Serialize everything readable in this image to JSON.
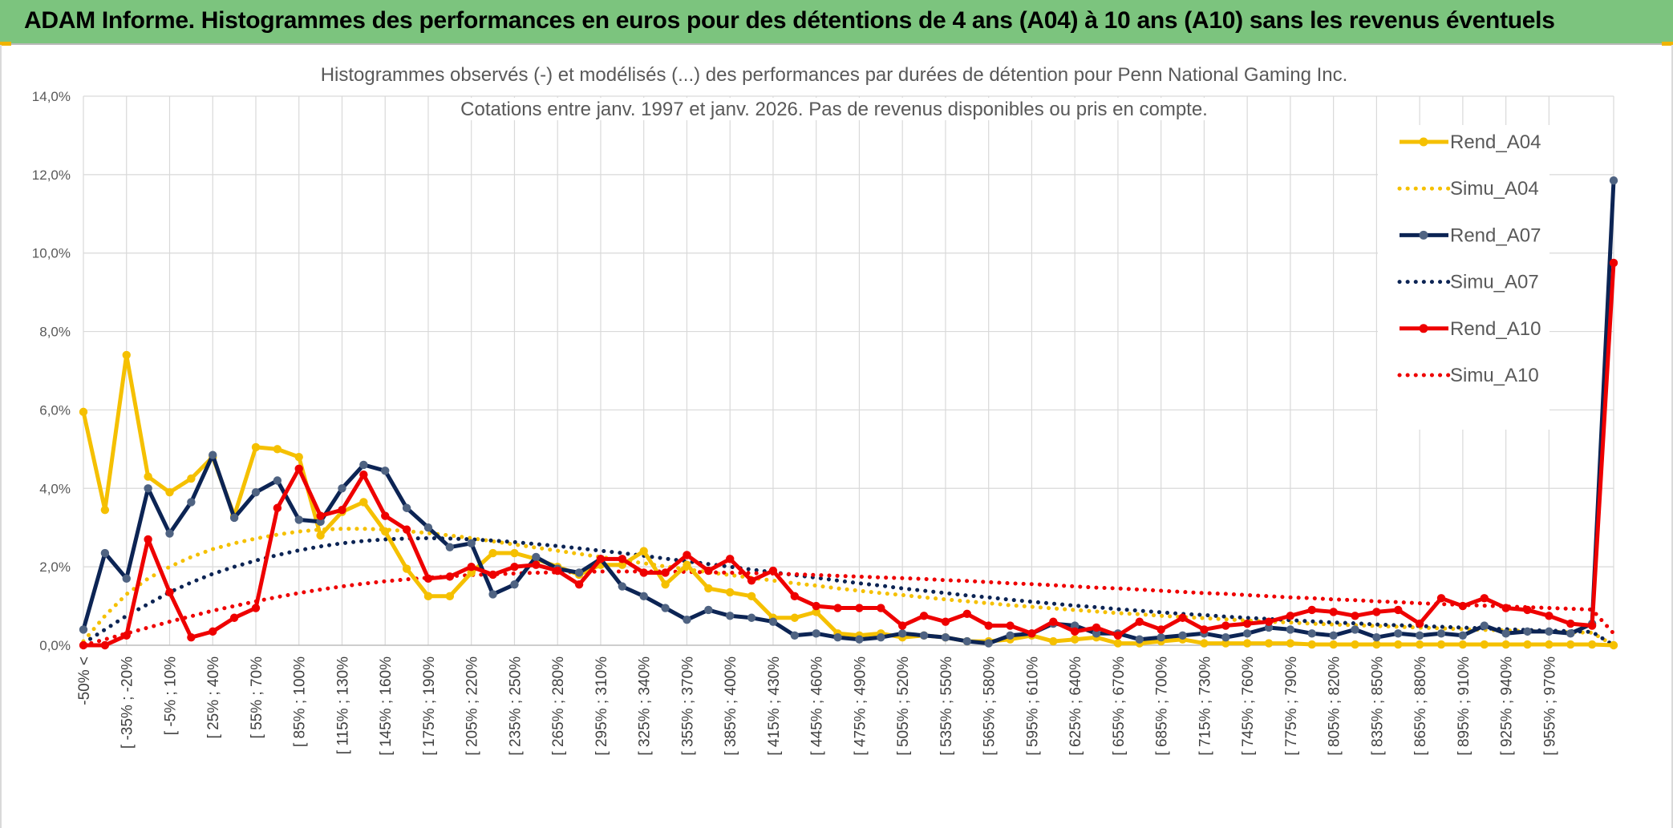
{
  "header": {
    "title": "ADAM Informe. Histogrammes des performances en euros pour des détentions de 4 ans (A04) à 10 ans (A10) sans les revenus éventuels"
  },
  "chart_data": {
    "type": "line",
    "title": "Histogrammes observés (-) et modélisés (...) des performances par durées de détention pour Penn National Gaming Inc.",
    "subtitle": "Cotations entre janv. 1997 et janv. 2026. Pas de revenus disponibles ou pris en compte.",
    "xlabel": "",
    "ylabel": "",
    "ylim": [
      0,
      14
    ],
    "yticks": [
      "0,0%",
      "2,0%",
      "4,0%",
      "6,0%",
      "8,0%",
      "10,0%",
      "12,0%",
      "14,0%"
    ],
    "grid": true,
    "legend_position": "right",
    "category_count": 72,
    "category_labels": [
      "-50% <",
      "[ -35% ; -20%",
      "[ -5% ; 10%",
      "[ 25% ; 40%",
      "[ 55% ; 70%",
      "[ 85% ; 100%",
      "[ 115% ; 130%",
      "[ 145% ; 160%",
      "[ 175% ; 190%",
      "[ 205% ; 220%",
      "[ 235% ; 250%",
      "[ 265% ; 280%",
      "[ 295% ; 310%",
      "[ 325% ; 340%",
      "[ 355% ; 370%",
      "[ 385% ; 400%",
      "[ 415% ; 430%",
      "[ 445% ; 460%",
      "[ 475% ; 490%",
      "[ 505% ; 520%",
      "[ 535% ; 550%",
      "[ 565% ; 580%",
      "[ 595% ; 610%",
      "[ 625% ; 640%",
      "[ 655% ; 670%",
      "[ 685% ; 700%",
      "[ 715% ; 730%",
      "[ 745% ; 760%",
      "[ 775% ; 790%",
      "[ 805% ; 820%",
      "[ 835% ; 850%",
      "[ 865% ; 880%",
      "[ 895% ; 910%",
      "[ 925% ; 940%",
      "[ 955% ; 970%"
    ],
    "series": [
      {
        "name": "Rend_A04",
        "color": "#f5c000",
        "style": "solid",
        "values": [
          5.95,
          3.45,
          7.4,
          4.3,
          3.9,
          4.25,
          4.8,
          3.3,
          5.05,
          5.0,
          4.8,
          2.8,
          3.4,
          3.65,
          2.9,
          1.95,
          1.25,
          1.25,
          1.85,
          2.35,
          2.35,
          2.2,
          2.0,
          1.8,
          2.05,
          2.05,
          2.4,
          1.55,
          2.05,
          1.45,
          1.35,
          1.25,
          0.7,
          0.7,
          0.85,
          0.3,
          0.25,
          0.3,
          0.2,
          0.25,
          0.2,
          0.1,
          0.1,
          0.15,
          0.25,
          0.1,
          0.15,
          0.2,
          0.05,
          0.05,
          0.1,
          0.15,
          0.05,
          0.05,
          0.05,
          0.05,
          0.05,
          0.02,
          0.02,
          0.02,
          0.02,
          0.02,
          0.02,
          0.02,
          0.02,
          0.02,
          0.02,
          0.02,
          0.02,
          0.02,
          0.02,
          0.0
        ]
      },
      {
        "name": "Simu_A04",
        "color": "#f5c000",
        "style": "dotted",
        "values": [
          0.1,
          0.75,
          1.3,
          1.7,
          2.0,
          2.25,
          2.45,
          2.6,
          2.72,
          2.82,
          2.9,
          2.95,
          2.97,
          2.97,
          2.95,
          2.91,
          2.86,
          2.8,
          2.73,
          2.65,
          2.57,
          2.49,
          2.41,
          2.33,
          2.25,
          2.17,
          2.09,
          2.01,
          1.94,
          1.86,
          1.79,
          1.72,
          1.65,
          1.58,
          1.52,
          1.45,
          1.39,
          1.33,
          1.28,
          1.22,
          1.17,
          1.12,
          1.07,
          1.02,
          0.98,
          0.94,
          0.9,
          0.86,
          0.82,
          0.79,
          0.75,
          0.72,
          0.69,
          0.66,
          0.63,
          0.6,
          0.58,
          0.55,
          0.53,
          0.51,
          0.49,
          0.47,
          0.45,
          0.43,
          0.41,
          0.39,
          0.38,
          0.36,
          0.35,
          0.33,
          0.32,
          0.0
        ]
      },
      {
        "name": "Rend_A07",
        "color": "#0c2454",
        "style": "solid",
        "values": [
          0.4,
          2.35,
          1.7,
          4.0,
          2.85,
          3.65,
          4.85,
          3.25,
          3.9,
          4.2,
          3.2,
          3.15,
          4.0,
          4.6,
          4.45,
          3.5,
          3.0,
          2.5,
          2.6,
          1.3,
          1.55,
          2.25,
          1.95,
          1.85,
          2.2,
          1.5,
          1.25,
          0.95,
          0.65,
          0.9,
          0.75,
          0.7,
          0.6,
          0.25,
          0.3,
          0.2,
          0.15,
          0.2,
          0.3,
          0.25,
          0.2,
          0.1,
          0.05,
          0.25,
          0.3,
          0.55,
          0.5,
          0.3,
          0.3,
          0.15,
          0.2,
          0.25,
          0.3,
          0.2,
          0.3,
          0.45,
          0.4,
          0.3,
          0.25,
          0.4,
          0.2,
          0.3,
          0.25,
          0.3,
          0.25,
          0.5,
          0.3,
          0.35,
          0.35,
          0.3,
          0.55,
          11.85
        ]
      },
      {
        "name": "Simu_A07",
        "color": "#0c2454",
        "style": "dotted",
        "values": [
          0.05,
          0.4,
          0.75,
          1.05,
          1.35,
          1.6,
          1.82,
          2.0,
          2.16,
          2.3,
          2.42,
          2.52,
          2.6,
          2.66,
          2.7,
          2.72,
          2.73,
          2.72,
          2.7,
          2.67,
          2.63,
          2.58,
          2.53,
          2.47,
          2.41,
          2.35,
          2.28,
          2.21,
          2.14,
          2.07,
          2.0,
          1.93,
          1.86,
          1.79,
          1.72,
          1.65,
          1.58,
          1.52,
          1.45,
          1.39,
          1.33,
          1.27,
          1.22,
          1.16,
          1.11,
          1.06,
          1.01,
          0.97,
          0.92,
          0.88,
          0.84,
          0.8,
          0.77,
          0.73,
          0.7,
          0.67,
          0.64,
          0.61,
          0.58,
          0.56,
          0.53,
          0.51,
          0.49,
          0.47,
          0.45,
          0.43,
          0.41,
          0.39,
          0.37,
          0.36,
          0.34,
          0.0
        ]
      },
      {
        "name": "Rend_A10",
        "color": "#ee0000",
        "style": "solid",
        "values": [
          0.0,
          0.0,
          0.25,
          2.7,
          1.35,
          0.2,
          0.35,
          0.7,
          0.95,
          3.5,
          4.5,
          3.3,
          3.45,
          4.35,
          3.3,
          2.95,
          1.7,
          1.75,
          2.0,
          1.8,
          2.0,
          2.05,
          1.9,
          1.55,
          2.2,
          2.2,
          1.85,
          1.85,
          2.3,
          1.9,
          2.2,
          1.65,
          1.9,
          1.25,
          1.0,
          0.95,
          0.95,
          0.95,
          0.5,
          0.75,
          0.6,
          0.8,
          0.5,
          0.5,
          0.3,
          0.6,
          0.35,
          0.45,
          0.25,
          0.6,
          0.4,
          0.7,
          0.4,
          0.5,
          0.55,
          0.6,
          0.75,
          0.9,
          0.85,
          0.75,
          0.85,
          0.9,
          0.55,
          1.2,
          1.0,
          1.2,
          0.95,
          0.9,
          0.75,
          0.55,
          0.5,
          9.75
        ]
      },
      {
        "name": "Simu_A10",
        "color": "#ee0000",
        "style": "dotted",
        "values": [
          0.0,
          0.15,
          0.3,
          0.45,
          0.6,
          0.74,
          0.88,
          1.0,
          1.12,
          1.23,
          1.33,
          1.42,
          1.5,
          1.57,
          1.63,
          1.68,
          1.72,
          1.76,
          1.79,
          1.81,
          1.83,
          1.85,
          1.86,
          1.87,
          1.88,
          1.88,
          1.88,
          1.88,
          1.87,
          1.86,
          1.85,
          1.84,
          1.83,
          1.81,
          1.79,
          1.77,
          1.75,
          1.73,
          1.71,
          1.69,
          1.66,
          1.64,
          1.61,
          1.58,
          1.56,
          1.53,
          1.5,
          1.47,
          1.45,
          1.42,
          1.39,
          1.36,
          1.33,
          1.31,
          1.28,
          1.25,
          1.22,
          1.2,
          1.17,
          1.15,
          1.12,
          1.1,
          1.07,
          1.05,
          1.03,
          1.01,
          0.99,
          0.97,
          0.95,
          0.93,
          0.91,
          0.3
        ]
      }
    ]
  }
}
